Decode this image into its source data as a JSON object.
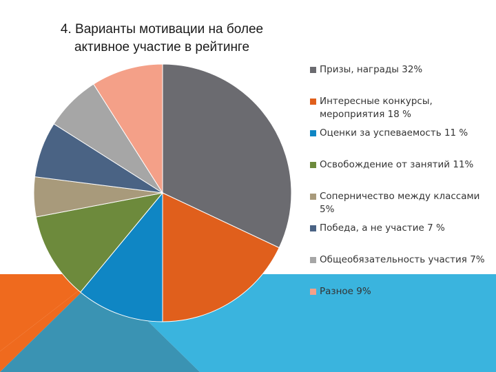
{
  "colors": {
    "background": "#ffffff",
    "slide_orange": "#ef6a1e",
    "slide_blue": "#3ab4de",
    "slide_teal": "#3a93b3"
  },
  "chart_data": {
    "type": "pie",
    "title": "4. Варианты мотивации на более активное участие в рейтинге",
    "legend_position": "right",
    "slices": [
      {
        "label": "Призы, награды 32%",
        "value": 32,
        "color": "#6b6b70"
      },
      {
        "label": "Интересные конкурсы, мероприятия 18 %",
        "value": 18,
        "color": "#e05f1c"
      },
      {
        "label": "Оценки за успеваемость 11 %",
        "value": 11,
        "color": "#0f86c4"
      },
      {
        "label": "Освобождение от занятий 11%",
        "value": 11,
        "color": "#6d8a3c"
      },
      {
        "label": "Соперничество между классами 5%",
        "value": 5,
        "color": "#a89a7b"
      },
      {
        "label": "Победа, а не участие 7 %",
        "value": 7,
        "color": "#4a6384"
      },
      {
        "label": "Общеобязательность участия 7%",
        "value": 7,
        "color": "#a6a6a6"
      },
      {
        "label": "Разное 9%",
        "value": 9,
        "color": "#f4a088"
      }
    ]
  }
}
